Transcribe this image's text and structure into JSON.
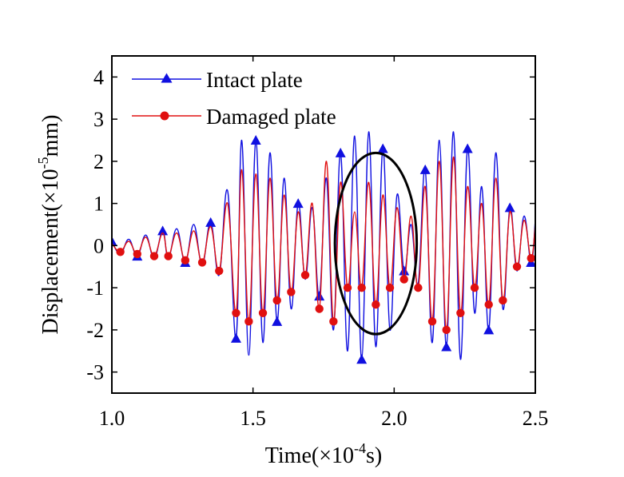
{
  "chart_data": {
    "type": "line",
    "xlabel": {
      "prefix": "Time(×10",
      "exp": "-4",
      "suffix": "s)"
    },
    "ylabel": {
      "prefix": "Displacement(×10",
      "exp": "-5",
      "suffix": "mm)"
    },
    "xlim": [
      1.0,
      2.5
    ],
    "ylim": [
      -3.5,
      4.5
    ],
    "xticks": [
      "1.0",
      "1.5",
      "2.0",
      "2.5"
    ],
    "xtick_values": [
      1.0,
      1.5,
      2.0,
      2.5
    ],
    "yticks": [
      "-3",
      "-2",
      "-1",
      "0",
      "1",
      "2",
      "3",
      "4"
    ],
    "ytick_values": [
      -3,
      -2,
      -1,
      0,
      1,
      2,
      3,
      4
    ],
    "grid": false,
    "legend_position": "top-left",
    "annotation": {
      "type": "ellipse",
      "center": [
        1.935,
        0.05
      ],
      "radii": [
        0.145,
        2.15
      ],
      "color": "#000000"
    },
    "series": [
      {
        "name": "Intact plate",
        "color": "#1010e0",
        "marker": "triangle",
        "x": [
          1.0,
          1.03,
          1.06,
          1.09,
          1.12,
          1.15,
          1.18,
          1.2,
          1.23,
          1.26,
          1.29,
          1.32,
          1.35,
          1.38,
          1.41,
          1.44,
          1.46,
          1.485,
          1.51,
          1.535,
          1.56,
          1.585,
          1.61,
          1.635,
          1.66,
          1.685,
          1.71,
          1.735,
          1.76,
          1.785,
          1.81,
          1.835,
          1.86,
          1.885,
          1.91,
          1.935,
          1.96,
          1.985,
          2.01,
          2.035,
          2.06,
          2.085,
          2.11,
          2.135,
          2.16,
          2.185,
          2.21,
          2.235,
          2.26,
          2.285,
          2.31,
          2.335,
          2.36,
          2.385,
          2.41,
          2.435,
          2.46,
          2.485,
          2.5
        ],
        "values": [
          0.1,
          -0.2,
          0.15,
          -0.25,
          0.25,
          -0.3,
          0.35,
          -0.3,
          0.4,
          -0.4,
          0.5,
          -0.45,
          0.55,
          -0.7,
          1.3,
          -2.2,
          2.5,
          -2.6,
          2.5,
          -2.3,
          2.2,
          -1.8,
          1.6,
          -1.5,
          1.0,
          -0.8,
          0.9,
          -1.2,
          1.6,
          -2.0,
          2.2,
          -2.5,
          2.6,
          -2.7,
          2.7,
          -2.4,
          2.3,
          -2.0,
          1.2,
          -0.6,
          0.5,
          -0.9,
          1.8,
          -2.3,
          2.5,
          -2.4,
          2.7,
          -2.7,
          2.3,
          -1.6,
          1.4,
          -2.0,
          2.2,
          -1.5,
          0.9,
          -0.6,
          0.7,
          -0.4,
          0.6
        ]
      },
      {
        "name": "Damaged plate",
        "color": "#e01010",
        "marker": "circle",
        "x": [
          1.0,
          1.03,
          1.06,
          1.09,
          1.12,
          1.15,
          1.18,
          1.2,
          1.23,
          1.26,
          1.29,
          1.32,
          1.35,
          1.38,
          1.41,
          1.44,
          1.46,
          1.485,
          1.51,
          1.535,
          1.56,
          1.585,
          1.61,
          1.635,
          1.66,
          1.685,
          1.71,
          1.735,
          1.76,
          1.785,
          1.81,
          1.835,
          1.86,
          1.885,
          1.91,
          1.935,
          1.96,
          1.985,
          2.01,
          2.035,
          2.06,
          2.085,
          2.11,
          2.135,
          2.16,
          2.185,
          2.21,
          2.235,
          2.26,
          2.285,
          2.31,
          2.335,
          2.36,
          2.385,
          2.41,
          2.435,
          2.46,
          2.485,
          2.5
        ],
        "values": [
          0.05,
          -0.15,
          0.1,
          -0.2,
          0.2,
          -0.25,
          0.3,
          -0.25,
          0.3,
          -0.35,
          0.35,
          -0.4,
          0.45,
          -0.6,
          1.0,
          -1.6,
          1.8,
          -1.8,
          1.7,
          -1.6,
          1.6,
          -1.3,
          1.2,
          -1.1,
          0.8,
          -0.7,
          1.0,
          -1.5,
          2.0,
          -1.8,
          1.5,
          -1.0,
          0.8,
          -1.0,
          1.5,
          -1.4,
          1.2,
          -1.0,
          0.9,
          -0.8,
          0.7,
          -1.0,
          1.4,
          -1.8,
          2.0,
          -2.0,
          2.1,
          -1.6,
          1.4,
          -1.0,
          1.0,
          -1.4,
          1.6,
          -1.3,
          0.8,
          -0.5,
          0.6,
          -0.3,
          0.5
        ]
      }
    ]
  }
}
